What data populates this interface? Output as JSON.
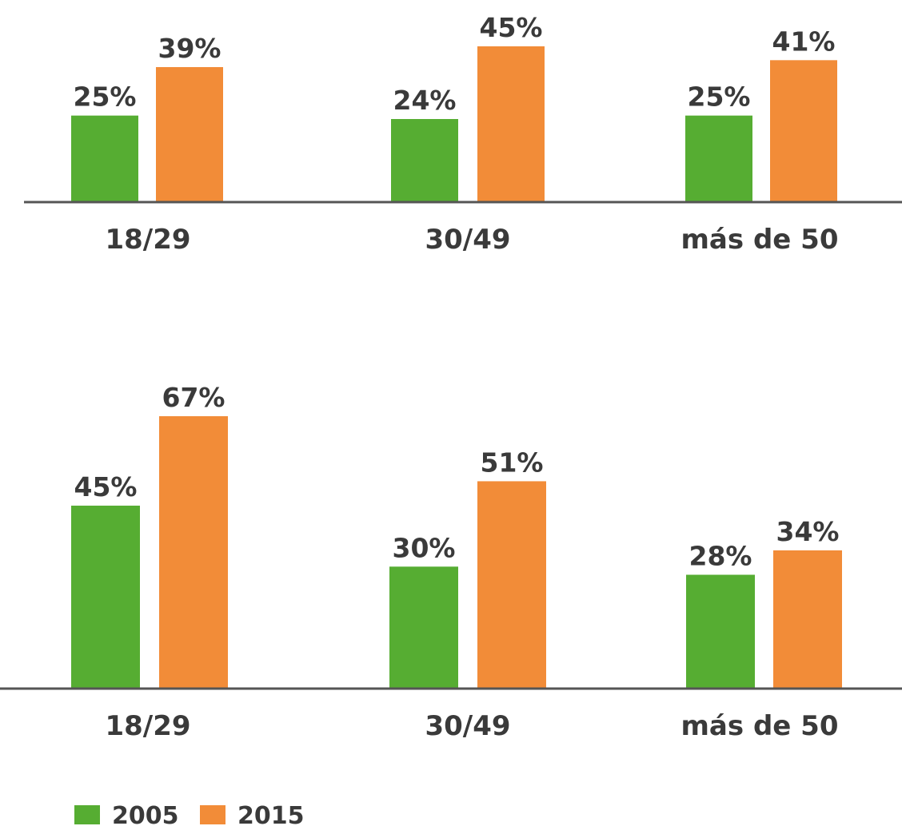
{
  "chart_data": [
    {
      "type": "bar",
      "categories": [
        "18/29",
        "30/49",
        "más de 50"
      ],
      "series": [
        {
          "name": "2005",
          "color": "#56ad32",
          "values": [
            25,
            24,
            25
          ],
          "value_labels": [
            "25%",
            "24%",
            "25%"
          ]
        },
        {
          "name": "2015",
          "color": "#f28c38",
          "values": [
            39,
            45,
            41
          ],
          "value_labels": [
            "39%",
            "45%",
            "41%"
          ]
        }
      ]
    },
    {
      "type": "bar",
      "categories": [
        "18/29",
        "30/49",
        "más de 50"
      ],
      "series": [
        {
          "color": "#56ad32",
          "values": [
            45,
            30,
            28
          ],
          "value_labels": [
            "45%",
            "30%",
            "28%"
          ]
        },
        {
          "color": "#f28c38",
          "values": [
            67,
            51,
            34
          ],
          "value_labels": [
            "67%",
            "51%",
            "34%"
          ]
        }
      ]
    }
  ]
}
